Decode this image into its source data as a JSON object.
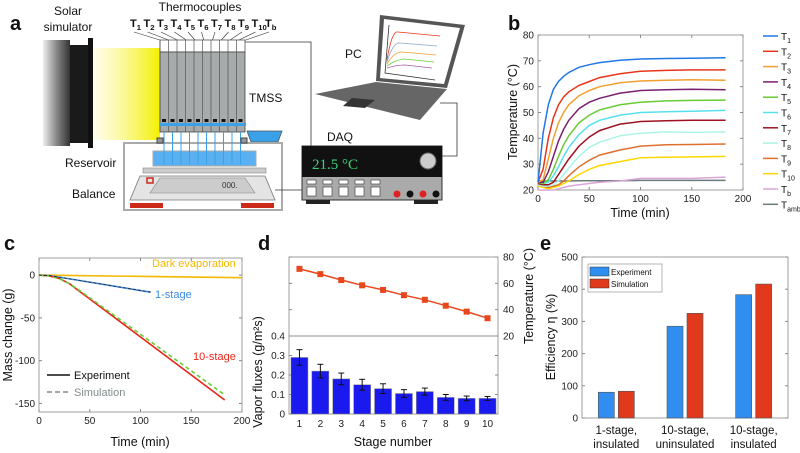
{
  "panel_labels": [
    "a",
    "b",
    "c",
    "d",
    "e"
  ],
  "diagram": {
    "solar_simulator_line1": "Solar",
    "solar_simulator_line2": "simulator",
    "thermocouples": "Thermocouples",
    "thermocouple_labels": [
      "T1",
      "T2",
      "T3",
      "T4",
      "T5",
      "T6",
      "T7",
      "T8",
      "T9",
      "T10",
      "Tb"
    ],
    "tmss": "TMSS",
    "reservoir": "Reservoir",
    "balance": "Balance",
    "balance_display": "000.",
    "pc": "PC",
    "daq": "DAQ",
    "daq_display": "21.5 °C",
    "colors": {
      "light": "#f4f000",
      "tmss": "#a8abab",
      "water": "#3aa0e8",
      "daq_text": "#37d37a",
      "feet": "#cc2a1a"
    }
  },
  "chart_data": [
    {
      "panel": "b",
      "type": "line",
      "xlabel": "Time (min)",
      "ylabel": "Temperature (°C)",
      "xlim": [
        0,
        200
      ],
      "ylim": [
        20,
        80
      ],
      "xticks": [
        0,
        50,
        100,
        150,
        200
      ],
      "yticks": [
        20,
        30,
        40,
        50,
        60,
        70,
        80
      ],
      "legend": "right",
      "x": [
        0,
        5,
        10,
        15,
        20,
        25,
        30,
        40,
        50,
        60,
        80,
        100,
        125,
        150,
        183
      ],
      "series": [
        {
          "name": "T1",
          "color": "#1f77e8",
          "values": [
            23,
            42,
            53,
            59,
            62,
            64,
            65.5,
            67.5,
            68.5,
            69.3,
            70.2,
            70.7,
            70.9,
            71,
            71.2
          ]
        },
        {
          "name": "T2",
          "color": "#e8351a",
          "values": [
            23,
            28,
            40,
            48,
            53,
            56,
            58,
            60.5,
            62,
            63.5,
            65,
            66,
            66.3,
            66.5,
            66.5
          ]
        },
        {
          "name": "T3",
          "color": "#f0a030",
          "values": [
            23,
            24,
            32,
            40,
            46,
            50,
            53,
            56.5,
            58.5,
            60,
            61.5,
            62.2,
            62.5,
            62.7,
            62.5
          ]
        },
        {
          "name": "T4",
          "color": "#7a1f6e",
          "values": [
            23,
            23,
            27,
            33,
            39,
            43.5,
            47,
            51.5,
            54,
            55.5,
            57.5,
            58.5,
            58.8,
            59,
            58.8
          ]
        },
        {
          "name": "T5",
          "color": "#66cc33",
          "values": [
            23,
            22.5,
            24,
            28,
            33,
            37.5,
            41,
            46,
            49,
            51,
            53,
            54,
            54.5,
            54.7,
            54.8
          ]
        },
        {
          "name": "T6",
          "color": "#55e0ee",
          "values": [
            23,
            22.5,
            23,
            25.5,
            29,
            33,
            36.5,
            41.5,
            45,
            47,
            49,
            50,
            50.3,
            50.5,
            50.8
          ]
        },
        {
          "name": "T7",
          "color": "#a01020",
          "values": [
            22.5,
            22,
            22,
            23,
            26,
            29,
            32,
            37,
            40.5,
            43,
            45.5,
            46.5,
            46.8,
            47,
            47
          ]
        },
        {
          "name": "T8",
          "color": "#aaf5e5",
          "values": [
            22,
            21.5,
            21.5,
            22,
            23.5,
            26,
            28.5,
            33,
            36.5,
            38.5,
            41,
            42,
            42.5,
            42.3,
            42.5
          ]
        },
        {
          "name": "T9",
          "color": "#e07030",
          "values": [
            22,
            21.5,
            21,
            21.5,
            22,
            23.5,
            25.5,
            29,
            31.5,
            33.5,
            35.5,
            37,
            37.5,
            37.6,
            37.8
          ]
        },
        {
          "name": "T10",
          "color": "#ffd700",
          "values": [
            21.5,
            21,
            20.5,
            21,
            21.5,
            22.5,
            23.5,
            26,
            28,
            29.5,
            31,
            32.5,
            32.7,
            32.8,
            33
          ]
        },
        {
          "name": "Tb",
          "color": "#d9a6d9",
          "values": [
            20,
            20,
            20,
            20,
            20.5,
            21,
            21.5,
            22,
            22.5,
            23,
            23.5,
            24.5,
            24.5,
            24.5,
            25
          ]
        },
        {
          "name": "Tamb",
          "color": "#6b7b7b",
          "values": [
            23.5,
            23.5,
            23.5,
            23.5,
            23.5,
            23.5,
            23.5,
            23.6,
            23.6,
            23.6,
            23.6,
            23.7,
            23.7,
            23.7,
            23.7
          ]
        }
      ]
    },
    {
      "panel": "c",
      "type": "line",
      "xlabel": "Time (min)",
      "ylabel": "Mass change (g)",
      "xlim": [
        0,
        200
      ],
      "ylim": [
        -160,
        20
      ],
      "xticks": [
        0,
        50,
        100,
        150,
        200
      ],
      "yticks": [
        -150,
        -100,
        -50,
        0
      ],
      "legend": "bottom-left",
      "legend_entries": [
        {
          "name": "Experiment",
          "color": "#111111",
          "dash": false
        },
        {
          "name": "Simulation",
          "color": "#7f8c8c",
          "dash": true
        }
      ],
      "series": [
        {
          "label": "Dark evaporation",
          "color": "#f5b800",
          "x": [
            0,
            200
          ],
          "values": [
            0,
            -3
          ]
        },
        {
          "label": "1-stage",
          "color": "#3b8be0",
          "x": [
            0,
            10,
            110
          ],
          "values": [
            0,
            -0.5,
            -20
          ]
        },
        {
          "label": "10-stage",
          "color": "#e8261a",
          "x": [
            0,
            10,
            20,
            30,
            40,
            183
          ],
          "values": [
            0,
            -1,
            -4,
            -10,
            -19,
            -146
          ]
        },
        {
          "label": "",
          "color": "#66cc33",
          "dash": true,
          "x": [
            0,
            10,
            20,
            30,
            40,
            183
          ],
          "values": [
            0,
            -1,
            -4,
            -10,
            -18,
            -140
          ]
        }
      ]
    },
    {
      "panel": "d-top",
      "type": "line",
      "ylabel": "Temperature (°C)",
      "ylim": [
        20,
        80
      ],
      "yticks": [
        20,
        40,
        60,
        80
      ],
      "color": "#e8471c",
      "categories": [
        1,
        2,
        3,
        4,
        5,
        6,
        7,
        8,
        9,
        10
      ],
      "values": [
        71,
        67,
        62.5,
        58.5,
        55,
        51,
        47.5,
        43,
        38.5,
        33.5
      ]
    },
    {
      "panel": "d-bottom",
      "type": "bar",
      "xlabel": "Stage number",
      "ylabel": "Vapor fluxes (g/m²s)",
      "ylim": [
        0,
        0.4
      ],
      "yticks": [
        0,
        0.1,
        0.2,
        0.3,
        0.4
      ],
      "color": "#1a1aee",
      "categories": [
        1,
        2,
        3,
        4,
        5,
        6,
        7,
        8,
        9,
        10
      ],
      "values": [
        0.29,
        0.22,
        0.18,
        0.15,
        0.13,
        0.105,
        0.115,
        0.085,
        0.08,
        0.08
      ],
      "errors": [
        0.04,
        0.035,
        0.03,
        0.028,
        0.025,
        0.02,
        0.018,
        0.015,
        0.012,
        0.01
      ]
    },
    {
      "panel": "e",
      "type": "bar",
      "ylabel": "Efficiency η (%)",
      "ylim": [
        0,
        500
      ],
      "yticks": [
        0,
        100,
        200,
        300,
        400,
        500
      ],
      "legend": "top-left",
      "categories": [
        [
          "1-stage,",
          "insulated"
        ],
        [
          "10-stage,",
          "uninsulated"
        ],
        [
          "10-stage,",
          "insulated"
        ]
      ],
      "series": [
        {
          "name": "Experiment",
          "color": "#2f8ef0",
          "values": [
            80,
            285,
            383
          ]
        },
        {
          "name": "Simulation",
          "color": "#e0391c",
          "values": [
            83,
            325,
            416
          ]
        }
      ]
    }
  ]
}
